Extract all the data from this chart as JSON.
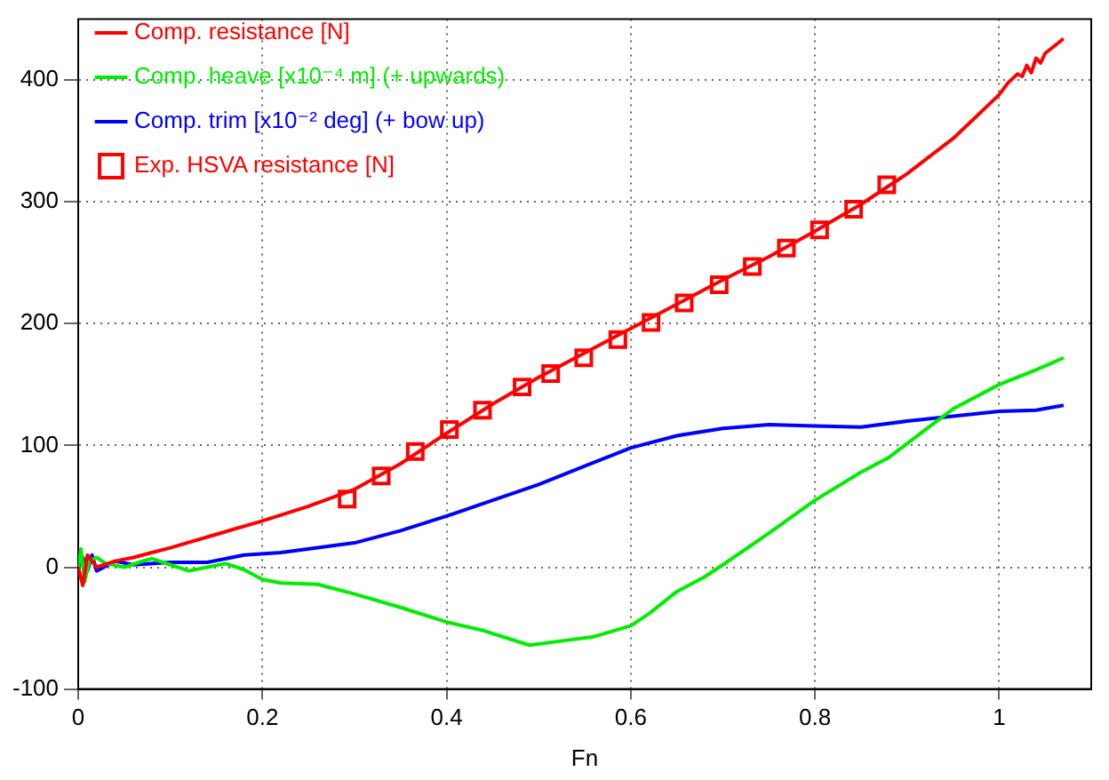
{
  "chart_data": {
    "type": "line",
    "xlabel": "Fn",
    "xlim": [
      0,
      1.1
    ],
    "ylim": [
      -100,
      450
    ],
    "xticks": [
      0,
      0.2,
      0.4,
      0.6,
      0.8,
      1
    ],
    "yticks": [
      -100,
      0,
      100,
      200,
      300,
      400
    ],
    "grid": true,
    "legend": "top left",
    "marker": "none",
    "line_style": "solid",
    "series": [
      {
        "name": "Comp. resistance [N]",
        "color": "#ff0000",
        "x": [
          0,
          0.005,
          0.01,
          0.02,
          0.04,
          0.06,
          0.08,
          0.1,
          0.15,
          0.2,
          0.25,
          0.3,
          0.35,
          0.4,
          0.45,
          0.5,
          0.55,
          0.6,
          0.65,
          0.7,
          0.75,
          0.8,
          0.85,
          0.9,
          0.95,
          1.0,
          1.01,
          1.02,
          1.025,
          1.03,
          1.035,
          1.04,
          1.045,
          1.05,
          1.07
        ],
        "values": [
          0,
          -15,
          10,
          0,
          5,
          8,
          12,
          16,
          27,
          38,
          50,
          64,
          85,
          110,
          134,
          156,
          176,
          196,
          216,
          236,
          255,
          276,
          298,
          323,
          352,
          388,
          398,
          405,
          403,
          412,
          406,
          418,
          414,
          422,
          434
        ]
      },
      {
        "name": "Comp. heave [x10⁻⁴ m] (+ upwards)",
        "color": "#00ee00",
        "x": [
          0,
          0.003,
          0.007,
          0.012,
          0.02,
          0.03,
          0.05,
          0.07,
          0.08,
          0.1,
          0.12,
          0.14,
          0.16,
          0.18,
          0.2,
          0.22,
          0.26,
          0.3,
          0.35,
          0.4,
          0.44,
          0.49,
          0.52,
          0.56,
          0.6,
          0.62,
          0.65,
          0.68,
          0.7,
          0.75,
          0.8,
          0.85,
          0.88,
          0.92,
          0.95,
          1.0,
          1.04,
          1.07
        ],
        "values": [
          0,
          15,
          -12,
          5,
          8,
          3,
          0,
          5,
          7,
          2,
          -3,
          0,
          3,
          -2,
          -10,
          -13,
          -14,
          -22,
          -33,
          -45,
          -52,
          -64,
          -61,
          -57,
          -48,
          -38,
          -20,
          -8,
          2,
          28,
          55,
          78,
          90,
          113,
          130,
          150,
          162,
          172
        ]
      },
      {
        "name": "Comp. trim [x10⁻² deg] (+ bow up)",
        "color": "#0000ff",
        "x": [
          0,
          0.005,
          0.01,
          0.015,
          0.02,
          0.04,
          0.06,
          0.1,
          0.14,
          0.18,
          0.22,
          0.26,
          0.3,
          0.35,
          0.4,
          0.45,
          0.5,
          0.55,
          0.6,
          0.65,
          0.7,
          0.75,
          0.8,
          0.85,
          0.9,
          0.95,
          1.0,
          1.04,
          1.07
        ],
        "values": [
          0,
          8,
          -3,
          10,
          -3,
          5,
          2,
          4,
          4,
          10,
          12,
          16,
          20,
          30,
          42,
          55,
          68,
          83,
          98,
          108,
          114,
          117,
          116,
          115,
          120,
          124,
          128,
          129,
          133
        ]
      },
      {
        "name": "Exp. HSVA resistance [N]",
        "type": "scatter",
        "marker": "square",
        "color": "#ff0000",
        "x": [
          0.292,
          0.329,
          0.366,
          0.403,
          0.439,
          0.482,
          0.513,
          0.549,
          0.586,
          0.622,
          0.658,
          0.696,
          0.732,
          0.769,
          0.805,
          0.842,
          0.878
        ],
        "values": [
          56,
          75,
          95,
          113,
          129,
          148,
          159,
          172,
          187,
          201,
          217,
          232,
          247,
          262,
          277,
          294,
          314
        ]
      }
    ]
  }
}
